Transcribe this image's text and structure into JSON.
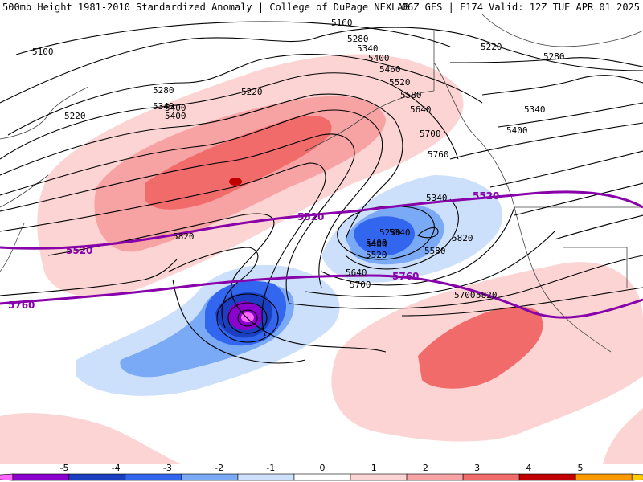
{
  "header": {
    "title": "500mb Height 1981-2010 Standardized Anomaly | College of DuPage NEXLAB",
    "run_info": "06Z GFS | F174 Valid: 12Z TUE APR 01 2025"
  },
  "contour_labels": [
    "5160",
    "5280",
    "5340",
    "5400",
    "5460",
    "5520",
    "5580",
    "5640",
    "5700",
    "5760",
    "5820",
    "5100",
    "5220",
    "5400",
    "5220",
    "5280",
    "5340",
    "5400",
    "5340",
    "5400",
    "5340",
    "5280",
    "5400",
    "5520",
    "5580",
    "5640",
    "5700",
    "5820",
    "5220",
    "5280",
    "5340",
    "5400",
    "5820",
    "5700"
  ],
  "purple_labels": [
    "5520",
    "5520",
    "5520",
    "5760",
    "5760"
  ],
  "colorbar": {
    "ticks": [
      "-5",
      "-4",
      "-3",
      "-2",
      "-1",
      "0",
      "1",
      "2",
      "3",
      "4",
      "5"
    ],
    "colors": [
      "#ff66ff",
      "#8a00cc",
      "#1a3fc0",
      "#3366ee",
      "#7aaaf5",
      "#cde0fb",
      "#ffffff",
      "#fcd4d4",
      "#f7a3a3",
      "#f16b6b",
      "#c20000",
      "#ff9900",
      "#ffcc00"
    ]
  }
}
